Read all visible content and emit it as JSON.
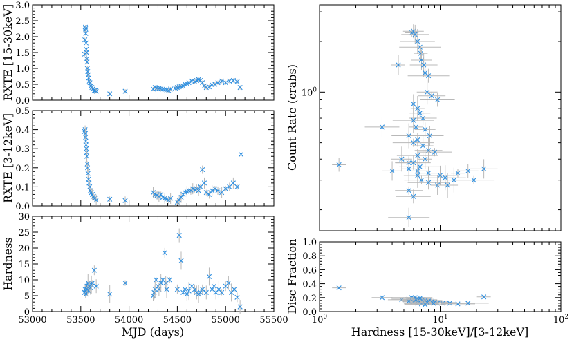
{
  "colors": {
    "marker": "#2E8FE0",
    "errorbar": "#B8B8B8",
    "frame": "#000000"
  },
  "chart_data": [
    {
      "type": "scatter",
      "panel": "rxte-hard",
      "ylabel": "RXTE [15-30keV]",
      "xlim": [
        53000,
        55500
      ],
      "ylim": [
        0,
        3.0
      ],
      "yticks": [
        "0.0",
        "0.5",
        "1.0",
        "1.5",
        "2.0",
        "2.5",
        "3.0"
      ],
      "x": [
        53540,
        53542,
        53545,
        53548,
        53550,
        53552,
        53555,
        53557,
        53560,
        53562,
        53565,
        53568,
        53572,
        53577,
        53582,
        53588,
        53595,
        53605,
        53615,
        53625,
        53640,
        53650,
        53660,
        53800,
        53960,
        54250,
        54270,
        54290,
        54310,
        54330,
        54350,
        54370,
        54390,
        54410,
        54430,
        54480,
        54500,
        54520,
        54540,
        54560,
        54580,
        54600,
        54620,
        54650,
        54680,
        54700,
        54720,
        54740,
        54760,
        54780,
        54800,
        54830,
        54860,
        54890,
        54920,
        54960,
        55000,
        55040,
        55080,
        55120,
        55150
      ],
      "y": [
        1.45,
        1.9,
        2.2,
        2.3,
        2.25,
        2.1,
        1.8,
        1.6,
        1.5,
        1.3,
        1.2,
        1.0,
        0.9,
        0.8,
        0.7,
        0.6,
        0.55,
        0.45,
        0.4,
        0.35,
        0.3,
        0.3,
        0.28,
        0.2,
        0.28,
        0.35,
        0.4,
        0.38,
        0.37,
        0.36,
        0.35,
        0.33,
        0.32,
        0.3,
        0.35,
        0.38,
        0.4,
        0.42,
        0.43,
        0.45,
        0.5,
        0.52,
        0.55,
        0.6,
        0.58,
        0.62,
        0.65,
        0.62,
        0.55,
        0.45,
        0.4,
        0.42,
        0.48,
        0.5,
        0.55,
        0.6,
        0.55,
        0.6,
        0.62,
        0.58,
        0.4
      ]
    },
    {
      "type": "scatter",
      "panel": "rxte-soft",
      "ylabel": "RXTE [3-12keV]",
      "xlim": [
        53000,
        55500
      ],
      "ylim": [
        0,
        0.5
      ],
      "yticks": [
        "0.0",
        "0.1",
        "0.2",
        "0.3",
        "0.4",
        "0.5"
      ],
      "x": [
        53540,
        53545,
        53548,
        53550,
        53552,
        53555,
        53558,
        53560,
        53563,
        53566,
        53570,
        53575,
        53580,
        53586,
        53592,
        53600,
        53610,
        53620,
        53632,
        53645,
        53660,
        53800,
        53960,
        54250,
        54270,
        54290,
        54310,
        54330,
        54350,
        54370,
        54390,
        54410,
        54430,
        54500,
        54520,
        54540,
        54560,
        54580,
        54600,
        54620,
        54640,
        54660,
        54680,
        54700,
        54720,
        54740,
        54760,
        54780,
        54800,
        54830,
        54860,
        54890,
        54920,
        54960,
        55000,
        55040,
        55080,
        55120,
        55160
      ],
      "y": [
        0.39,
        0.4,
        0.38,
        0.36,
        0.34,
        0.32,
        0.3,
        0.28,
        0.26,
        0.22,
        0.2,
        0.17,
        0.14,
        0.12,
        0.1,
        0.08,
        0.07,
        0.06,
        0.05,
        0.04,
        0.03,
        0.035,
        0.028,
        0.07,
        0.06,
        0.055,
        0.05,
        0.06,
        0.045,
        0.04,
        0.035,
        0.03,
        0.04,
        0.02,
        0.03,
        0.045,
        0.06,
        0.07,
        0.075,
        0.08,
        0.08,
        0.09,
        0.085,
        0.09,
        0.08,
        0.1,
        0.19,
        0.12,
        0.07,
        0.06,
        0.08,
        0.09,
        0.08,
        0.07,
        0.09,
        0.1,
        0.12,
        0.1,
        0.27
      ]
    },
    {
      "type": "scatter",
      "panel": "hardness-time",
      "ylabel": "Hardness",
      "xlabel": "MJD (days)",
      "xlim": [
        53000,
        55500
      ],
      "ylim": [
        0,
        30
      ],
      "xticks": [
        "53000",
        "53500",
        "54000",
        "54500",
        "55000",
        "55500"
      ],
      "yticks": [
        "0",
        "5",
        "10",
        "15",
        "20",
        "25",
        "30"
      ],
      "x": [
        53540,
        53545,
        53550,
        53555,
        53560,
        53565,
        53570,
        53575,
        53580,
        53590,
        53600,
        53610,
        53620,
        53640,
        53660,
        53800,
        53960,
        54250,
        54260,
        54270,
        54280,
        54300,
        54310,
        54330,
        54350,
        54370,
        54380,
        54390,
        54420,
        54500,
        54520,
        54540,
        54560,
        54580,
        54600,
        54620,
        54650,
        54680,
        54700,
        54720,
        54740,
        54760,
        54800,
        54830,
        54860,
        54880,
        54900,
        54930,
        54960,
        55000,
        55030,
        55060,
        55090,
        55120,
        55150
      ],
      "y": [
        6,
        7,
        6.5,
        5.5,
        7,
        8,
        7,
        9,
        6.5,
        8,
        7.5,
        8.5,
        9,
        13,
        8,
        5.5,
        9,
        5,
        6,
        7,
        10,
        8,
        7,
        9,
        10,
        18.5,
        9,
        7,
        10,
        7,
        24,
        16,
        6,
        7,
        5.5,
        6.5,
        8,
        7,
        6,
        5.5,
        6,
        7,
        6,
        11,
        7,
        8,
        6,
        7,
        6,
        8,
        9,
        6,
        7,
        4.5,
        1.5
      ]
    },
    {
      "type": "scatter",
      "panel": "hid",
      "ylabel": "Count Rate (crabs)",
      "xscale": "log",
      "yscale": "log",
      "xlim": [
        1,
        100
      ],
      "ylim": [
        0.15,
        3.3
      ],
      "yticks": [
        "10^0"
      ],
      "x": [
        5.8,
        6.0,
        6.2,
        6.5,
        6.8,
        6.9,
        7.0,
        7.3,
        7.5,
        8.0,
        4.5,
        7.8,
        8.5,
        9.5,
        6.0,
        6.5,
        6.8,
        7.2,
        3.3,
        6.0,
        6.3,
        7.5,
        8.2,
        5.5,
        6.0,
        6.5,
        7.2,
        8.0,
        9.0,
        6.5,
        7.5,
        4.8,
        5.5,
        6.0,
        6.8,
        5.5,
        6.5,
        8.0,
        10.0,
        11.0,
        14.0,
        17.0,
        23.0,
        13.0,
        19.0,
        1.45,
        4.0,
        6.5,
        7.0,
        8.0,
        9.5,
        11.5,
        5.5,
        6.0,
        5.5
      ],
      "y": [
        2.25,
        2.3,
        2.2,
        2.0,
        1.85,
        1.7,
        1.55,
        1.45,
        1.3,
        1.25,
        1.45,
        1.0,
        0.95,
        0.9,
        0.85,
        0.8,
        0.75,
        0.7,
        0.62,
        0.68,
        0.62,
        0.6,
        0.55,
        0.55,
        0.5,
        0.52,
        0.48,
        0.45,
        0.44,
        0.42,
        0.4,
        0.4,
        0.38,
        0.38,
        0.36,
        0.35,
        0.34,
        0.33,
        0.32,
        0.31,
        0.33,
        0.34,
        0.35,
        0.3,
        0.3,
        0.37,
        0.34,
        0.32,
        0.3,
        0.29,
        0.28,
        0.28,
        0.26,
        0.24,
        0.18
      ]
    },
    {
      "type": "scatter",
      "panel": "disc-fraction",
      "ylabel": "Disc Fraction",
      "xlabel": "Hardness [15-30keV]/[3-12keV]",
      "xscale": "log",
      "xlim": [
        1,
        100
      ],
      "ylim": [
        0,
        1.0
      ],
      "xticks": [
        "10^0",
        "10^1",
        "10^2"
      ],
      "yticks": [
        "0.0",
        "0.2",
        "0.4",
        "0.6",
        "0.8",
        "1.0"
      ],
      "x": [
        1.45,
        3.3,
        4.8,
        5.5,
        5.8,
        6.0,
        6.2,
        6.5,
        6.8,
        7.0,
        7.2,
        7.5,
        8.0,
        8.5,
        9.0,
        9.5,
        10.5,
        12.0,
        14.0,
        17.0,
        23.0,
        6.0,
        6.5,
        7.0,
        7.5,
        5.5,
        6.3,
        6.8,
        7.8,
        8.8
      ],
      "y": [
        0.34,
        0.2,
        0.17,
        0.18,
        0.2,
        0.19,
        0.2,
        0.18,
        0.17,
        0.16,
        0.15,
        0.16,
        0.15,
        0.14,
        0.13,
        0.12,
        0.12,
        0.12,
        0.11,
        0.12,
        0.21,
        0.14,
        0.12,
        0.11,
        0.1,
        0.15,
        0.17,
        0.19,
        0.13,
        0.12
      ]
    }
  ]
}
